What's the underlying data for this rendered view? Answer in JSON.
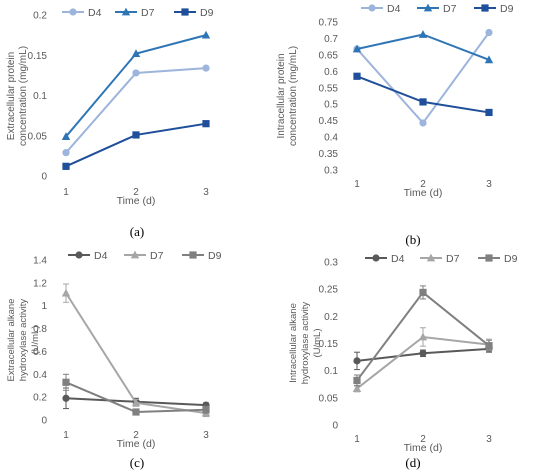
{
  "figure": {
    "panels": [
      {
        "label": "(a)"
      },
      {
        "label": "(b)"
      },
      {
        "label": "(c)"
      },
      {
        "label": "(d)"
      }
    ]
  },
  "chart_data": [
    {
      "type": "line",
      "x": [
        1,
        2,
        3
      ],
      "categories": [
        "1",
        "2",
        "3"
      ],
      "xlabel": "Time (d)",
      "ylabel": "Extracellular protein concentration (mg/mL)",
      "ylim": [
        0,
        0.2
      ],
      "yticks": [
        "0",
        "0.05",
        "0.1",
        "0.15",
        "0.2"
      ],
      "legend": "top",
      "grid": false,
      "series": [
        {
          "name": "D4",
          "values": [
            0.029,
            0.128,
            0.134
          ],
          "color": "#9DB4DC",
          "marker": "circle"
        },
        {
          "name": "D7",
          "values": [
            0.049,
            0.152,
            0.175
          ],
          "color": "#2E75B6",
          "marker": "triangle"
        },
        {
          "name": "D9",
          "values": [
            0.012,
            0.051,
            0.065
          ],
          "color": "#1F4E9A",
          "marker": "square"
        }
      ]
    },
    {
      "type": "line",
      "x": [
        1,
        2,
        3
      ],
      "categories": [
        "1",
        "2",
        "3"
      ],
      "xlabel": "Time (d)",
      "ylabel": "Intracellular protein concentration (mg/mL)",
      "ylim": [
        0.3,
        0.75
      ],
      "yticks": [
        "0.3",
        "0.35",
        "0.4",
        "0.45",
        "0.5",
        "0.55",
        "0.6",
        "0.65",
        "0.7",
        "0.75"
      ],
      "legend": "top",
      "grid": false,
      "series": [
        {
          "name": "D4",
          "values": [
            0.668,
            0.443,
            0.718
          ],
          "color": "#9DB4DC",
          "marker": "circle"
        },
        {
          "name": "D7",
          "values": [
            0.668,
            0.712,
            0.635
          ],
          "color": "#2E75B6",
          "marker": "triangle"
        },
        {
          "name": "D9",
          "values": [
            0.585,
            0.507,
            0.475
          ],
          "color": "#1F4E9A",
          "marker": "square"
        }
      ]
    },
    {
      "type": "line",
      "x": [
        1,
        2,
        3
      ],
      "categories": [
        "1",
        "2",
        "3"
      ],
      "xlabel": "Time (d)",
      "ylabel": "Extracellular alkane hydroxylase activity (U/mL)",
      "ylim": [
        0,
        1.4
      ],
      "yticks": [
        "0",
        "0.2",
        "0.4",
        "0.6",
        "0.8",
        "1",
        "1.2",
        "1.4"
      ],
      "legend": "top",
      "grid": false,
      "series": [
        {
          "name": "D4",
          "values": [
            0.19,
            0.16,
            0.13
          ],
          "err": [
            0.09,
            0.03,
            0.02
          ],
          "color": "#595959",
          "marker": "circle"
        },
        {
          "name": "D7",
          "values": [
            1.11,
            0.15,
            0.06
          ],
          "err": [
            0.08,
            0.03,
            0.03
          ],
          "color": "#A6A6A6",
          "marker": "triangle"
        },
        {
          "name": "D9",
          "values": [
            0.33,
            0.07,
            0.09
          ],
          "err": [
            0.07,
            0.02,
            0.03
          ],
          "color": "#808080",
          "marker": "square"
        }
      ]
    },
    {
      "type": "line",
      "x": [
        1,
        2,
        3
      ],
      "categories": [
        "1",
        "2",
        "3"
      ],
      "xlabel": "Time (d)",
      "ylabel": "Intracellular alkane hydroxylase activity (U/mL)",
      "ylim": [
        0,
        0.3
      ],
      "yticks": [
        "0",
        "0.05",
        "0.1",
        "0.15",
        "0.2",
        "0.25",
        "0.3"
      ],
      "legend": "top",
      "grid": false,
      "series": [
        {
          "name": "D4",
          "values": [
            0.118,
            0.132,
            0.14
          ],
          "err": [
            0.016,
            0.006,
            0.006
          ],
          "color": "#595959",
          "marker": "circle"
        },
        {
          "name": "D7",
          "values": [
            0.067,
            0.162,
            0.148
          ],
          "err": [
            0.006,
            0.017,
            0.01
          ],
          "color": "#A6A6A6",
          "marker": "triangle"
        },
        {
          "name": "D9",
          "values": [
            0.082,
            0.244,
            0.146
          ],
          "err": [
            0.01,
            0.012,
            0.01
          ],
          "color": "#808080",
          "marker": "square"
        }
      ]
    }
  ]
}
